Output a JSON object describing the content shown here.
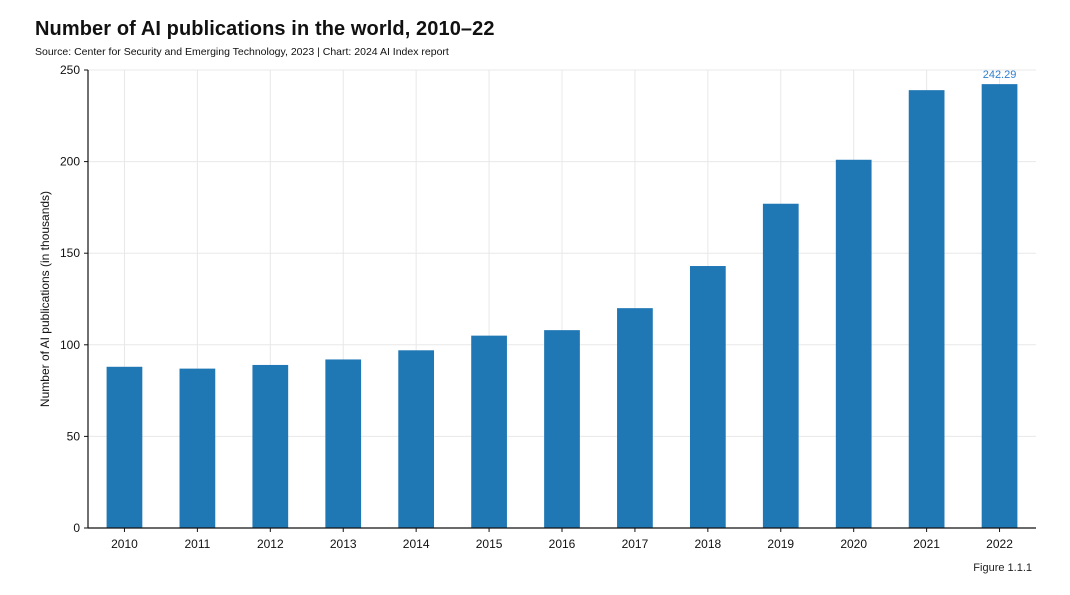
{
  "title": "Number of AI publications in the world, 2010–22",
  "source": "Source: Center for Security and Emerging Technology, 2023 | Chart: 2024 AI Index report",
  "figure_label": "Figure 1.1.1",
  "colors": {
    "bar": "#1f77b4",
    "label": "#2f7fd0",
    "grid": "#e8e8e8",
    "axis": "#111111"
  },
  "chart_data": {
    "type": "bar",
    "title": "Number of AI publications in the world, 2010–22",
    "xlabel": "",
    "ylabel": "Number of AI publications (in thousands)",
    "categories": [
      "2010",
      "2011",
      "2012",
      "2013",
      "2014",
      "2015",
      "2016",
      "2017",
      "2018",
      "2019",
      "2020",
      "2021",
      "2022"
    ],
    "values": [
      88,
      87,
      89,
      92,
      97,
      105,
      108,
      120,
      143,
      177,
      201,
      239,
      242.29
    ],
    "ylim": [
      0,
      250
    ],
    "yticks": [
      0,
      50,
      100,
      150,
      200,
      250
    ],
    "grid": true,
    "data_labels": [
      {
        "category": "2022",
        "text": "242.29"
      }
    ]
  }
}
